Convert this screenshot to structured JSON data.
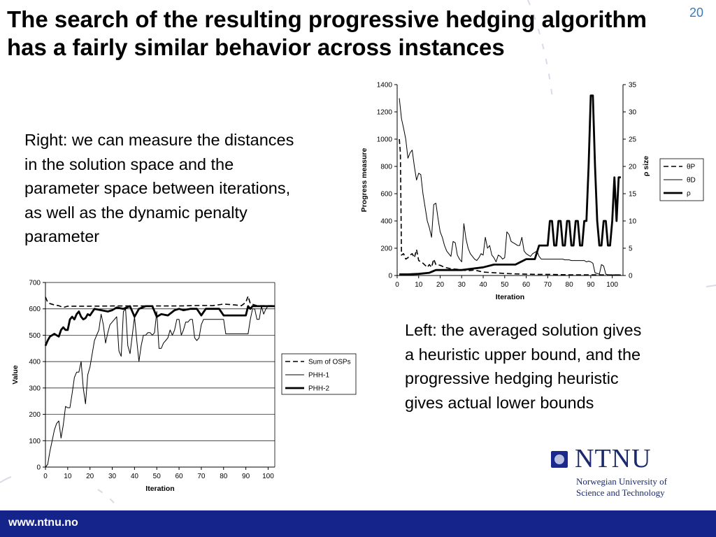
{
  "slide": {
    "title": "The search of the resulting progressive hedging algorithm has a fairly similar behavior across instances",
    "page_number": "20",
    "right_text": "Right: we can measure the distances in the solution space and the parameter space between iterations, as well as the dynamic penalty parameter",
    "left_text": "Left: the averaged solution gives a heuristic upper bound, and the progressive hedging heuristic gives actual lower bounds",
    "footer_url": "www.ntnu.no",
    "logo": {
      "name": "NTNU",
      "subtitle_line1": "Norwegian University of",
      "subtitle_line2": "Science and Technology"
    },
    "colors": {
      "footer": "#14248a",
      "title": "#000000",
      "page_number": "#3a7ac0"
    }
  },
  "chart_data": [
    {
      "type": "line",
      "xlabel": "Iteration",
      "ylabel": "Progress measure",
      "y2label": "ρ size",
      "xlim": [
        0,
        105
      ],
      "ylim": [
        0,
        1400
      ],
      "y2lim": [
        0,
        35
      ],
      "x_ticks": [
        0,
        10,
        20,
        30,
        40,
        50,
        60,
        70,
        80,
        90,
        100
      ],
      "y_ticks": [
        0,
        200,
        400,
        600,
        800,
        1000,
        1200,
        1400
      ],
      "y2_ticks": [
        0,
        5,
        10,
        15,
        20,
        25,
        30,
        35
      ],
      "grid": false,
      "legend": "right",
      "series": [
        {
          "name": "θP",
          "axis": "left",
          "style": "dashed",
          "x": [
            1,
            1.5,
            2,
            3,
            4,
            5,
            6,
            7,
            8,
            9,
            10,
            12,
            14,
            15,
            16,
            17,
            18,
            20,
            22,
            25,
            28,
            30,
            33,
            36,
            40,
            45,
            50,
            55,
            60,
            65,
            70,
            80,
            90,
            100,
            104
          ],
          "y": [
            1000,
            900,
            150,
            160,
            120,
            130,
            150,
            160,
            130,
            190,
            110,
            90,
            60,
            80,
            60,
            120,
            80,
            75,
            60,
            50,
            45,
            40,
            35,
            40,
            25,
            20,
            15,
            12,
            10,
            8,
            8,
            5,
            5,
            4,
            4
          ]
        },
        {
          "name": "θD",
          "axis": "left",
          "style": "solid-thin",
          "x": [
            1,
            2,
            3,
            4,
            5,
            6,
            7,
            8,
            9,
            10,
            11,
            12,
            13,
            14,
            15,
            16,
            17,
            18,
            19,
            20,
            21,
            22,
            23,
            24,
            25,
            26,
            27,
            28,
            29,
            30,
            31,
            32,
            33,
            34,
            35,
            36,
            37,
            38,
            39,
            40,
            41,
            42,
            43,
            44,
            45,
            46,
            47,
            48,
            49,
            50,
            51,
            52,
            53,
            54,
            55,
            56,
            57,
            58,
            59,
            60,
            61,
            62,
            63,
            64,
            65,
            66,
            67,
            68,
            69,
            70,
            71,
            72,
            73,
            74,
            75,
            76,
            77,
            78,
            79,
            80,
            81,
            82,
            83,
            84,
            85,
            86,
            87,
            88,
            89,
            90,
            91,
            92,
            93,
            94,
            95,
            96,
            97,
            98,
            99,
            100,
            101,
            102,
            103,
            104
          ],
          "y": [
            1300,
            1150,
            1080,
            1000,
            860,
            900,
            920,
            800,
            700,
            750,
            740,
            600,
            500,
            400,
            350,
            280,
            520,
            530,
            420,
            320,
            280,
            220,
            180,
            160,
            140,
            250,
            240,
            150,
            120,
            100,
            380,
            270,
            200,
            160,
            140,
            120,
            110,
            130,
            160,
            150,
            280,
            200,
            220,
            150,
            130,
            100,
            150,
            140,
            120,
            130,
            320,
            300,
            250,
            240,
            230,
            220,
            220,
            280,
            180,
            160,
            150,
            140,
            160,
            170,
            180,
            140,
            120,
            120,
            120,
            120,
            120,
            120,
            120,
            120,
            120,
            120,
            120,
            115,
            115,
            115,
            110,
            110,
            110,
            110,
            110,
            110,
            110,
            100,
            105,
            100,
            90,
            20,
            15,
            10,
            80,
            70,
            10,
            5,
            5,
            5,
            5,
            5,
            5,
            5
          ]
        },
        {
          "name": "ρ",
          "axis": "right",
          "style": "solid-thick",
          "x": [
            1,
            5,
            10,
            15,
            18,
            20,
            25,
            30,
            40,
            45,
            50,
            55,
            60,
            62,
            64,
            66,
            67,
            68,
            69,
            70,
            71,
            72,
            73,
            74,
            75,
            76,
            77,
            78,
            79,
            80,
            81,
            82,
            83,
            84,
            85,
            86,
            87,
            88,
            89,
            90,
            91,
            92,
            93,
            94,
            95,
            96,
            97,
            98,
            99,
            100,
            101,
            102,
            103,
            104
          ],
          "y": [
            0.2,
            0.2,
            0.3,
            0.5,
            1,
            1,
            1,
            1,
            1.5,
            2,
            2,
            2,
            3,
            3,
            3,
            5.5,
            5.5,
            5.5,
            5.5,
            5.5,
            10,
            10,
            5.5,
            5.5,
            10,
            10,
            5.5,
            5.5,
            10,
            10,
            5.5,
            5.5,
            10,
            10,
            5.5,
            5.5,
            10,
            10,
            20,
            33,
            33,
            20,
            10,
            5.5,
            5.5,
            10,
            10,
            5.5,
            5.5,
            10,
            18,
            10,
            18,
            18
          ]
        }
      ]
    },
    {
      "type": "line",
      "xlabel": "Iteration",
      "ylabel": "Value",
      "xlim": [
        0,
        103
      ],
      "ylim": [
        0,
        700
      ],
      "x_ticks": [
        0,
        10,
        20,
        30,
        40,
        50,
        60,
        70,
        80,
        90,
        100
      ],
      "y_ticks": [
        0,
        100,
        200,
        300,
        400,
        500,
        600,
        700
      ],
      "grid": true,
      "legend": "right",
      "series": [
        {
          "name": "Sum of OSPs",
          "style": "dashed",
          "x": [
            0,
            1,
            2,
            4,
            6,
            8,
            10,
            20,
            30,
            40,
            50,
            60,
            65,
            70,
            75,
            80,
            85,
            88,
            90,
            91,
            92,
            95,
            100,
            103
          ],
          "y": [
            645,
            625,
            620,
            615,
            612,
            605,
            610,
            610,
            611,
            611,
            611,
            611,
            612,
            613,
            612,
            618,
            615,
            612,
            625,
            648,
            620,
            612,
            612,
            612
          ]
        },
        {
          "name": "PHH-1",
          "style": "solid-thin",
          "x": [
            0,
            1,
            2,
            3,
            4,
            5,
            6,
            7,
            8,
            9,
            10,
            11,
            12,
            13,
            14,
            15,
            16,
            17,
            18,
            19,
            20,
            21,
            22,
            23,
            24,
            25,
            26,
            27,
            28,
            29,
            30,
            31,
            32,
            33,
            34,
            35,
            36,
            37,
            38,
            39,
            40,
            41,
            42,
            43,
            44,
            45,
            46,
            47,
            48,
            49,
            50,
            51,
            52,
            53,
            54,
            55,
            56,
            57,
            58,
            59,
            60,
            61,
            62,
            63,
            64,
            65,
            66,
            67,
            68,
            69,
            70,
            71,
            72,
            73,
            74,
            75,
            76,
            77,
            78,
            79,
            80,
            81,
            82,
            83,
            84,
            85,
            86,
            87,
            88,
            89,
            90,
            91,
            92,
            93,
            94,
            95,
            96,
            97,
            98,
            99,
            100,
            101,
            102,
            103
          ],
          "y": [
            0,
            10,
            60,
            100,
            140,
            165,
            175,
            110,
            160,
            230,
            225,
            225,
            280,
            340,
            360,
            360,
            400,
            300,
            240,
            350,
            380,
            430,
            480,
            500,
            520,
            580,
            540,
            470,
            510,
            540,
            550,
            560,
            570,
            440,
            420,
            590,
            600,
            460,
            430,
            500,
            570,
            480,
            400,
            460,
            500,
            500,
            510,
            510,
            500,
            510,
            590,
            450,
            450,
            470,
            480,
            490,
            520,
            500,
            520,
            560,
            560,
            500,
            520,
            550,
            550,
            560,
            560,
            490,
            480,
            490,
            540,
            560,
            560,
            560,
            560,
            560,
            560,
            560,
            560,
            560,
            560,
            505,
            505,
            505,
            505,
            505,
            505,
            505,
            505,
            505,
            505,
            505,
            560,
            600,
            600,
            560,
            560,
            610,
            580,
            600,
            610,
            610,
            610,
            610
          ]
        },
        {
          "name": "PHH-2",
          "style": "solid-thick",
          "x": [
            0,
            1,
            2,
            3,
            4,
            5,
            6,
            7,
            8,
            9,
            10,
            11,
            12,
            13,
            14,
            15,
            16,
            17,
            18,
            19,
            20,
            22,
            25,
            28,
            30,
            32,
            35,
            38,
            40,
            42,
            45,
            48,
            50,
            52,
            55,
            58,
            60,
            62,
            65,
            68,
            70,
            72,
            75,
            78,
            80,
            85,
            88,
            90,
            91,
            92,
            93,
            95,
            97,
            100,
            103
          ],
          "y": [
            460,
            480,
            495,
            500,
            505,
            500,
            495,
            520,
            530,
            520,
            520,
            560,
            570,
            560,
            580,
            590,
            570,
            560,
            565,
            580,
            575,
            600,
            595,
            590,
            595,
            605,
            600,
            610,
            570,
            600,
            610,
            610,
            570,
            580,
            575,
            595,
            600,
            595,
            600,
            600,
            575,
            600,
            600,
            600,
            575,
            575,
            575,
            575,
            610,
            600,
            610,
            610,
            610,
            610,
            610
          ]
        }
      ]
    }
  ]
}
